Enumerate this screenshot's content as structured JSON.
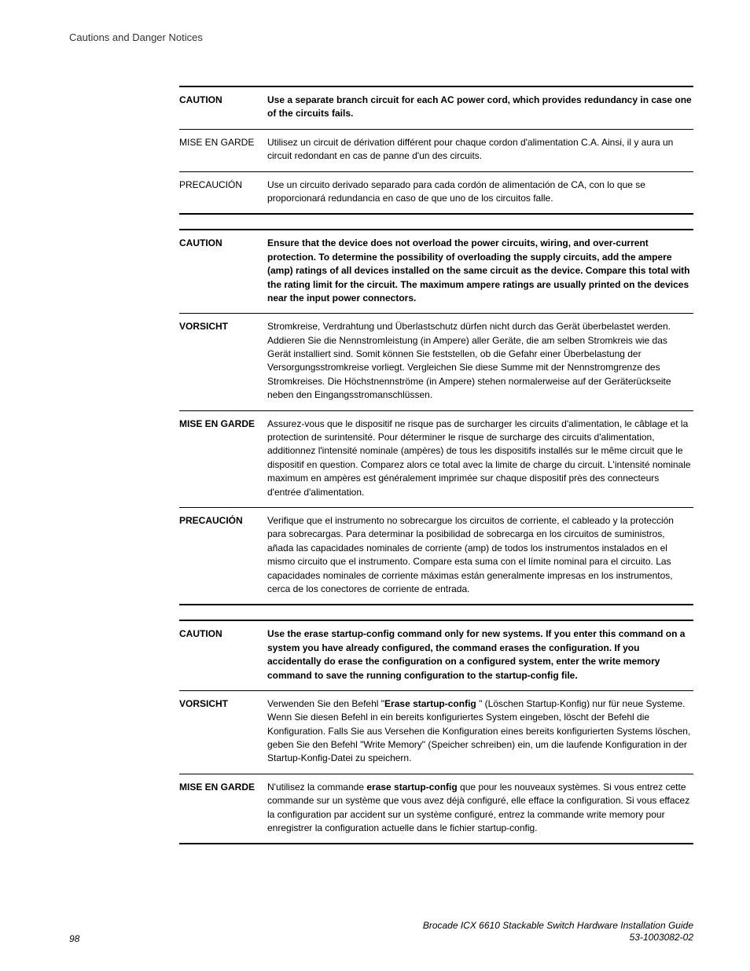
{
  "header": {
    "title": "Cautions and Danger Notices"
  },
  "colors": {
    "text": "#000000",
    "background": "#ffffff",
    "rule_heavy": "#000000",
    "rule_light": "#000000"
  },
  "typography": {
    "body_fontsize_pt": 9,
    "line_height": 1.45,
    "font_family": "Arial, Helvetica, sans-serif"
  },
  "blocks": [
    {
      "rows": [
        {
          "label": "CAUTION",
          "label_bold": true,
          "text_bold": true,
          "text": "Use a separate branch circuit for each AC power cord, which provides redundancy in case one of the circuits fails."
        },
        {
          "label": "MISE EN GARDE",
          "label_bold": false,
          "text_bold": false,
          "text": "Utilisez un circuit de dérivation différent pour chaque cordon d'alimentation C.A. Ainsi, il y aura un circuit redondant en cas de panne d'un des circuits."
        },
        {
          "label": "PRECAUCIÓN",
          "label_bold": false,
          "text_bold": false,
          "text": "Use un circuito derivado separado para cada cordón de alimentación de CA, con lo que se proporcionará redundancia en caso de que uno de los circuitos falle."
        }
      ]
    },
    {
      "rows": [
        {
          "label": "CAUTION",
          "label_bold": true,
          "text_bold": true,
          "text": "Ensure that the device does not overload the power circuits, wiring, and over-current protection. To determine the possibility of overloading the supply circuits, add the ampere (amp) ratings of all devices installed on the same circuit as the device. Compare this total with the rating limit for the circuit. The maximum ampere ratings are usually printed on the devices near the input power connectors."
        },
        {
          "label": "VORSICHT",
          "label_bold": true,
          "text_bold": false,
          "text": "Stromkreise, Verdrahtung und Überlastschutz dürfen nicht durch das Gerät überbelastet werden. Addieren Sie die Nennstromleistung (in Ampere) aller Geräte, die am selben Stromkreis wie das Gerät installiert sind. Somit können Sie feststellen, ob die Gefahr einer Überbelastung der Versorgungsstromkreise vorliegt. Vergleichen Sie diese Summe mit der Nennstromgrenze des Stromkreises. Die Höchstnennströme (in Ampere) stehen normalerweise auf der Geräterückseite neben den Eingangsstromanschlüssen."
        },
        {
          "label": "MISE EN GARDE",
          "label_bold": true,
          "text_bold": false,
          "text": "Assurez-vous que le dispositif ne risque pas de surcharger les circuits d'alimentation, le câblage et la protection de surintensité. Pour déterminer le risque de surcharge des circuits d'alimentation, additionnez l'intensité nominale (ampères) de tous les dispositifs installés sur le même circuit que le dispositif en question. Comparez alors ce total avec la limite de charge du circuit. L'intensité nominale maximum en ampères est généralement imprimée sur chaque dispositif près des connecteurs d'entrée d'alimentation."
        },
        {
          "label": "PRECAUCIÓN",
          "label_bold": true,
          "text_bold": false,
          "text": "Verifique que el instrumento no sobrecargue los circuitos de corriente, el cableado y la protección para sobrecargas. Para determinar la posibilidad de sobrecarga en los circuitos de suministros, añada las capacidades nominales de corriente (amp) de todos los instrumentos instalados en el mismo circuito que el instrumento. Compare esta suma con el límite nominal para el circuito. Las capacidades nominales de corriente máximas están generalmente impresas en los instrumentos, cerca de los conectores de corriente de entrada."
        }
      ]
    },
    {
      "rows": [
        {
          "label": "CAUTION",
          "label_bold": true,
          "text_bold": true,
          "has_cmd": true,
          "pre": "Use the ",
          "cmd": "erase startup-config",
          "post": " command only for new systems. If you enter this command on a system you have already configured, the command erases the configuration. If you accidentally do erase the configuration on a configured system, enter the write memory command to save the running configuration to the startup-config file."
        },
        {
          "label": "VORSICHT",
          "label_bold": true,
          "text_bold": false,
          "has_cmd": true,
          "pre": "Verwenden Sie den Befehl \"",
          "cmd": "Erase startup-config ",
          "post": "\" (Löschen Startup-Konfig) nur für neue Systeme. Wenn Sie diesen Befehl in ein bereits konfiguriertes System eingeben, löscht der Befehl die Konfiguration. Falls Sie aus Versehen die Konfiguration eines bereits konfigurierten Systems löschen, geben Sie den Befehl \"Write Memory\" (Speicher schreiben) ein, um die laufende Konfiguration in der Startup-Konfig-Datei zu speichern."
        },
        {
          "label": "MISE EN GARDE",
          "label_bold": true,
          "text_bold": false,
          "has_cmd": true,
          "pre": "N'utilisez la commande ",
          "cmd": "erase startup-config",
          "post": " que pour les nouveaux systèmes. Si vous entrez cette commande sur un système que vous avez déjà configuré, elle efface la configuration. Si vous effacez la configuration par accident sur un système configuré, entrez la commande write memory pour enregistrer la configuration actuelle dans le fichier startup-config."
        }
      ]
    }
  ],
  "footer": {
    "page": "98",
    "doc_title": "Brocade ICX 6610 Stackable Switch Hardware Installation Guide",
    "doc_number": "53-1003082-02"
  }
}
